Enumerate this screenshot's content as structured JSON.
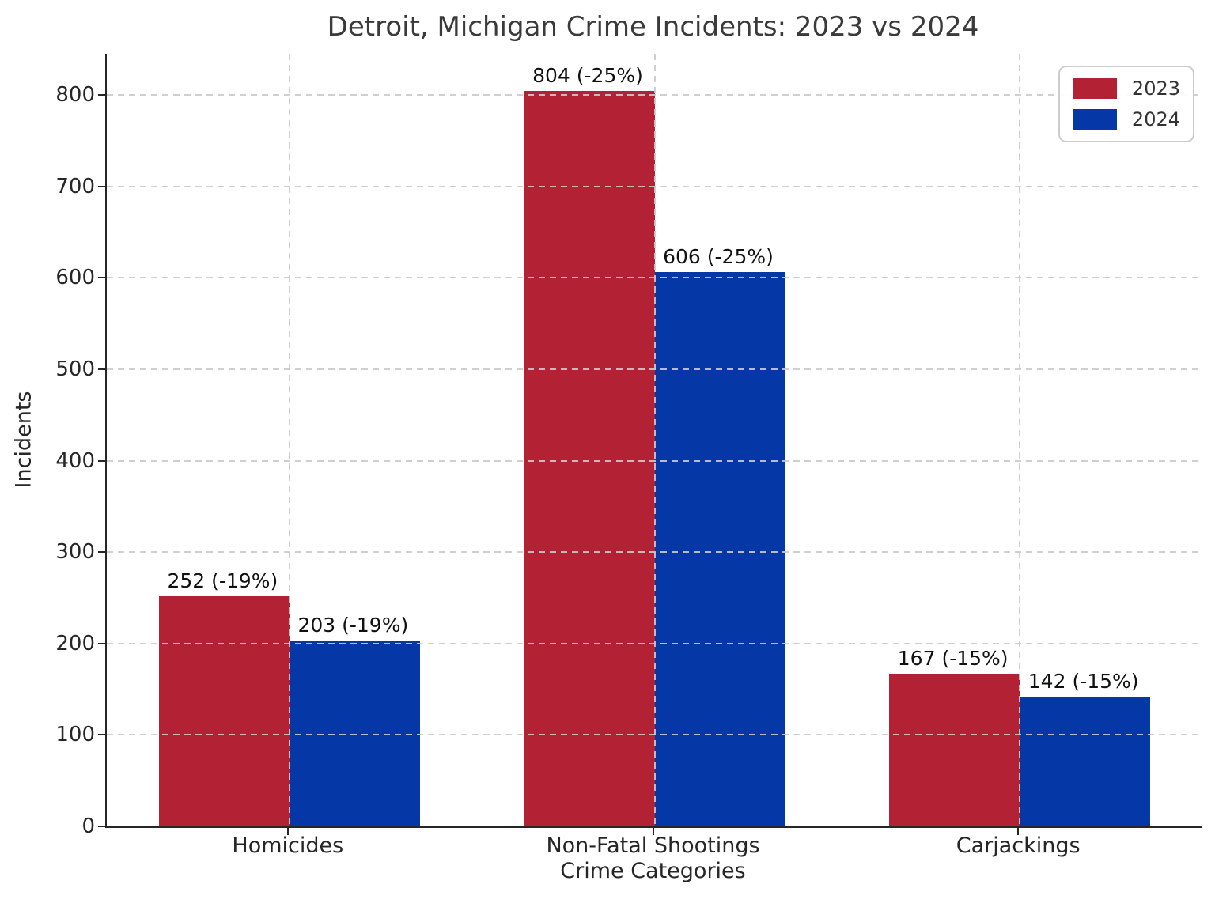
{
  "chart_data": {
    "type": "bar",
    "title": "Detroit, Michigan Crime Incidents: 2023 vs 2024",
    "xlabel": "Crime Categories",
    "ylabel": "Incidents",
    "categories": [
      "Homicides",
      "Non-Fatal Shootings",
      "Carjackings"
    ],
    "series": [
      {
        "name": "2023",
        "color": "#B22234",
        "values": [
          252,
          804,
          167
        ],
        "bar_labels": [
          "252 (-19%)",
          "804 (-25%)",
          "167 (-15%)"
        ]
      },
      {
        "name": "2024",
        "color": "#0538A6",
        "values": [
          203,
          606,
          142
        ],
        "bar_labels": [
          "203 (-19%)",
          "606 (-25%)",
          "142 (-15%)"
        ]
      }
    ],
    "y_ticks": [
      0,
      100,
      200,
      300,
      400,
      500,
      600,
      700,
      800
    ],
    "ylim": [
      0,
      845
    ],
    "grid": "dashed gridlines on both axes, drawn over bars",
    "legend_position": "upper right"
  }
}
